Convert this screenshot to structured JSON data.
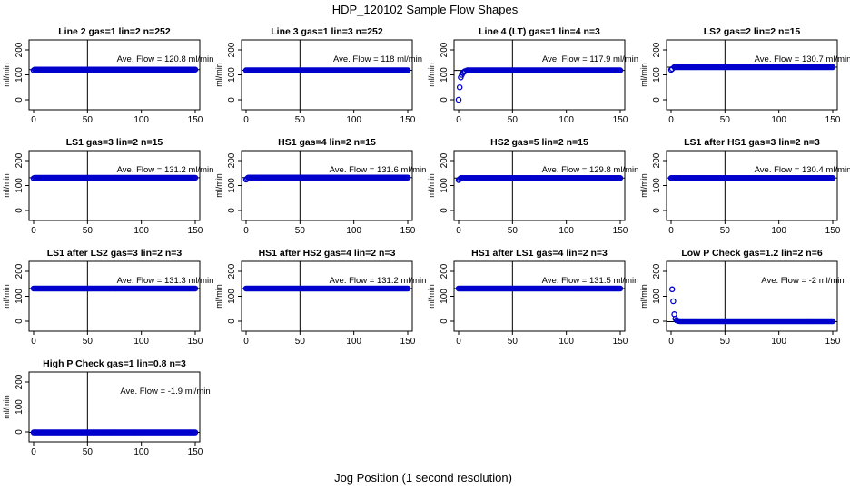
{
  "figure": {
    "title": "HDP_120102  Sample Flow Shapes",
    "xlabel": "Jog Position (1 second resolution)"
  },
  "chart_data": [
    {
      "type": "scatter",
      "title": "Line 2 gas=1 lin=2 n=252",
      "ylabel": "ml/min",
      "annotation": "Ave. Flow =  120.8  ml/min",
      "xlim": [
        0,
        150
      ],
      "ylim": [
        0,
        200
      ],
      "x_ticks": [
        0,
        50,
        100,
        150
      ],
      "y_ticks": [
        0,
        100,
        200
      ],
      "vline_x": 50,
      "ave_flow": 120.8,
      "series": [
        {
          "x": [
            0,
            1,
            150
          ],
          "y": [
            118,
            121,
            121
          ]
        }
      ]
    },
    {
      "type": "scatter",
      "title": "Line 3 gas=1 lin=3 n=252",
      "ylabel": "ml/min",
      "annotation": "Ave. Flow =  118  ml/min",
      "xlim": [
        0,
        150
      ],
      "ylim": [
        0,
        200
      ],
      "x_ticks": [
        0,
        50,
        100,
        150
      ],
      "y_ticks": [
        0,
        100,
        200
      ],
      "vline_x": 50,
      "ave_flow": 118,
      "series": [
        {
          "x": [
            0,
            150
          ],
          "y": [
            118,
            118
          ]
        }
      ]
    },
    {
      "type": "scatter",
      "title": "Line 4 (LT) gas=1 lin=4 n=3",
      "ylabel": "ml/min",
      "annotation": "Ave. Flow =  117.9  ml/min",
      "xlim": [
        0,
        150
      ],
      "ylim": [
        0,
        200
      ],
      "x_ticks": [
        0,
        50,
        100,
        150
      ],
      "y_ticks": [
        0,
        100,
        200
      ],
      "vline_x": 50,
      "ave_flow": 117.9,
      "series": [
        {
          "x": [
            0,
            1,
            2,
            3,
            4,
            5,
            6,
            8,
            150
          ],
          "y": [
            0,
            50,
            90,
            100,
            108,
            112,
            115,
            118,
            118
          ]
        }
      ]
    },
    {
      "type": "scatter",
      "title": "LS2 gas=2 lin=2 n=15",
      "ylabel": "ml/min",
      "annotation": "Ave. Flow =  130.7  ml/min",
      "xlim": [
        0,
        150
      ],
      "ylim": [
        0,
        200
      ],
      "x_ticks": [
        0,
        50,
        100,
        150
      ],
      "y_ticks": [
        0,
        100,
        200
      ],
      "vline_x": 50,
      "ave_flow": 130.7,
      "series": [
        {
          "x": [
            0,
            1,
            3,
            150
          ],
          "y": [
            120,
            124,
            131,
            131
          ]
        }
      ]
    },
    {
      "type": "scatter",
      "title": "LS1 gas=3 lin=2 n=15",
      "ylabel": "ml/min",
      "annotation": "Ave. Flow =  131.2  ml/min",
      "xlim": [
        0,
        150
      ],
      "ylim": [
        0,
        200
      ],
      "x_ticks": [
        0,
        50,
        100,
        150
      ],
      "y_ticks": [
        0,
        100,
        200
      ],
      "vline_x": 50,
      "ave_flow": 131.2,
      "series": [
        {
          "x": [
            0,
            1,
            150
          ],
          "y": [
            129,
            131,
            131
          ]
        }
      ]
    },
    {
      "type": "scatter",
      "title": "HS1 gas=4 lin=2 n=15",
      "ylabel": "ml/min",
      "annotation": "Ave. Flow =  131.6  ml/min",
      "xlim": [
        0,
        150
      ],
      "ylim": [
        0,
        200
      ],
      "x_ticks": [
        0,
        50,
        100,
        150
      ],
      "y_ticks": [
        0,
        100,
        200
      ],
      "vline_x": 50,
      "ave_flow": 131.6,
      "series": [
        {
          "x": [
            0,
            1,
            2,
            150
          ],
          "y": [
            124,
            128,
            132,
            132
          ]
        }
      ]
    },
    {
      "type": "scatter",
      "title": "HS2 gas=5 lin=2 n=15",
      "ylabel": "ml/min",
      "annotation": "Ave. Flow =  129.8  ml/min",
      "xlim": [
        0,
        150
      ],
      "ylim": [
        0,
        200
      ],
      "x_ticks": [
        0,
        50,
        100,
        150
      ],
      "y_ticks": [
        0,
        100,
        200
      ],
      "vline_x": 50,
      "ave_flow": 129.8,
      "series": [
        {
          "x": [
            0,
            1,
            2,
            150
          ],
          "y": [
            122,
            126,
            130,
            130
          ]
        }
      ]
    },
    {
      "type": "scatter",
      "title": "LS1 after HS1 gas=3 lin=2 n=3",
      "ylabel": "ml/min",
      "annotation": "Ave. Flow =  130.4  ml/min",
      "xlim": [
        0,
        150
      ],
      "ylim": [
        0,
        200
      ],
      "x_ticks": [
        0,
        50,
        100,
        150
      ],
      "y_ticks": [
        0,
        100,
        200
      ],
      "vline_x": 50,
      "ave_flow": 130.4,
      "series": [
        {
          "x": [
            0,
            150
          ],
          "y": [
            130,
            130
          ]
        }
      ]
    },
    {
      "type": "scatter",
      "title": "LS1 after LS2 gas=3 lin=2 n=3",
      "ylabel": "ml/min",
      "annotation": "Ave. Flow =  131.3  ml/min",
      "xlim": [
        0,
        150
      ],
      "ylim": [
        0,
        200
      ],
      "x_ticks": [
        0,
        50,
        100,
        150
      ],
      "y_ticks": [
        0,
        100,
        200
      ],
      "vline_x": 50,
      "ave_flow": 131.3,
      "series": [
        {
          "x": [
            0,
            150
          ],
          "y": [
            131,
            131
          ]
        }
      ]
    },
    {
      "type": "scatter",
      "title": "HS1 after HS2 gas=4 lin=2 n=3",
      "ylabel": "ml/min",
      "annotation": "Ave. Flow =  131.2  ml/min",
      "xlim": [
        0,
        150
      ],
      "ylim": [
        0,
        200
      ],
      "x_ticks": [
        0,
        50,
        100,
        150
      ],
      "y_ticks": [
        0,
        100,
        200
      ],
      "vline_x": 50,
      "ave_flow": 131.2,
      "series": [
        {
          "x": [
            0,
            150
          ],
          "y": [
            131,
            131
          ]
        }
      ]
    },
    {
      "type": "scatter",
      "title": "HS1 after LS1 gas=4 lin=2 n=3",
      "ylabel": "ml/min",
      "annotation": "Ave. Flow =  131.5  ml/min",
      "xlim": [
        0,
        150
      ],
      "ylim": [
        0,
        200
      ],
      "x_ticks": [
        0,
        50,
        100,
        150
      ],
      "y_ticks": [
        0,
        100,
        200
      ],
      "vline_x": 50,
      "ave_flow": 131.5,
      "series": [
        {
          "x": [
            0,
            150
          ],
          "y": [
            131,
            131
          ]
        }
      ]
    },
    {
      "type": "scatter",
      "title": "Low P Check gas=1.2 lin=2 n=6",
      "ylabel": "ml/min",
      "annotation": "Ave. Flow =  -2  ml/min",
      "xlim": [
        0,
        150
      ],
      "ylim": [
        0,
        200
      ],
      "x_ticks": [
        0,
        50,
        100,
        150
      ],
      "y_ticks": [
        0,
        100,
        200
      ],
      "vline_x": 50,
      "ave_flow": -2,
      "series": [
        {
          "x": [
            1,
            2,
            3,
            4,
            5,
            6,
            7,
            8,
            150
          ],
          "y": [
            128,
            80,
            28,
            10,
            4,
            2,
            1,
            0,
            0
          ]
        }
      ]
    },
    {
      "type": "scatter",
      "title": "High P Check gas=1 lin=0.8 n=3",
      "ylabel": "ml/min",
      "annotation": "Ave. Flow =  -1.9  ml/min",
      "xlim": [
        0,
        150
      ],
      "ylim": [
        0,
        200
      ],
      "x_ticks": [
        0,
        50,
        100,
        150
      ],
      "y_ticks": [
        0,
        100,
        200
      ],
      "vline_x": 50,
      "ave_flow": -1.9,
      "series": [
        {
          "x": [
            0,
            150
          ],
          "y": [
            -2,
            -2
          ]
        }
      ]
    }
  ],
  "colors": {
    "points": "#0000cc",
    "axes": "#000000",
    "background": "#ffffff"
  }
}
